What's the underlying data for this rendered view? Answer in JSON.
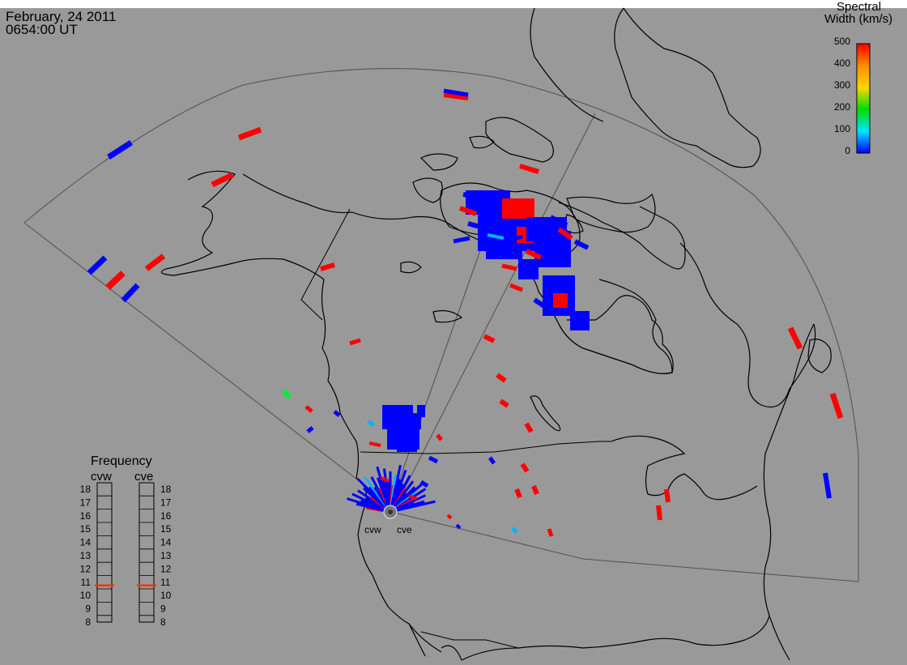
{
  "header": {
    "date": "February, 24 2011",
    "time": "0654:00 UT"
  },
  "colorbar": {
    "title_line1": "Spectral",
    "title_line2": "Width (km/s)",
    "ticks": [
      "500",
      "400",
      "300",
      "200",
      "100",
      "0"
    ],
    "colors": [
      "#ff0000",
      "#ff8c00",
      "#ffd700",
      "#00dd00",
      "#00e5ff",
      "#0000ff"
    ]
  },
  "frequency_panel": {
    "title": "Frequency",
    "columns": [
      {
        "name": "cvw",
        "marker_value": 11
      },
      {
        "name": "cve",
        "marker_value": 11
      }
    ],
    "scale": [
      "18",
      "17",
      "16",
      "15",
      "14",
      "13",
      "12",
      "11",
      "10",
      "9",
      "8"
    ],
    "marker_color": "#ff3300"
  },
  "radar_sites": [
    {
      "name": "cvw"
    },
    {
      "name": "cve"
    }
  ],
  "palette": {
    "background": "#999999",
    "blue": "#0000ff",
    "red": "#ff0000",
    "cyan": "#00b4ff",
    "green": "#00ee33"
  }
}
